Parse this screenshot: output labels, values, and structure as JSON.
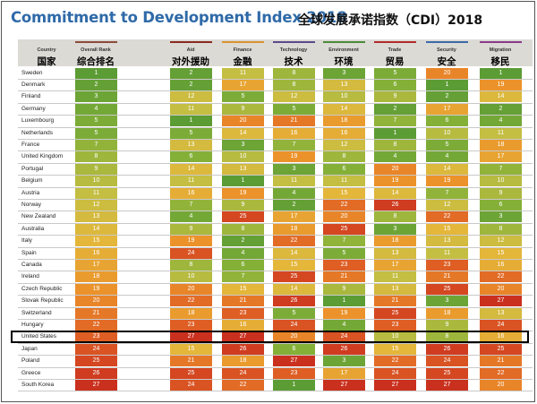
{
  "title": "Commitment to Development Index 2018",
  "title_cn": "全球发展承诺指数（CDI）2018",
  "columns": [
    {
      "en": "Country",
      "cn": "国家",
      "accent": ""
    },
    {
      "en": "Overall Rank",
      "cn": "综合排名",
      "accent": "#8b4a3a"
    },
    {
      "en": "Aid",
      "cn": "对外援助",
      "accent": "#8a2a1f"
    },
    {
      "en": "Finance",
      "cn": "金融",
      "accent": "#d9932f"
    },
    {
      "en": "Technology",
      "cn": "技术",
      "accent": "#5b4a8a"
    },
    {
      "en": "Environment",
      "cn": "环境",
      "accent": "#4a8a3a"
    },
    {
      "en": "Trade",
      "cn": "贸易",
      "accent": "#b22a2a"
    },
    {
      "en": "Security",
      "cn": "安全",
      "accent": "#3a6aa8"
    },
    {
      "en": "Migration",
      "cn": "移民",
      "accent": "#8a3a8a"
    }
  ],
  "highlight": "United States",
  "chart_data": {
    "type": "table",
    "title": "Commitment to Development Index 2018",
    "columns": [
      "Country",
      "Overall Rank",
      "Aid",
      "Finance",
      "Technology",
      "Environment",
      "Trade",
      "Security",
      "Migration"
    ],
    "rows": [
      [
        "Sweden",
        1,
        2,
        11,
        8,
        3,
        5,
        20,
        1
      ],
      [
        "Denmark",
        2,
        2,
        17,
        8,
        13,
        6,
        1,
        19
      ],
      [
        "Finland",
        3,
        12,
        5,
        12,
        10,
        9,
        2,
        14
      ],
      [
        "Germany",
        4,
        11,
        9,
        5,
        14,
        2,
        17,
        2
      ],
      [
        "Luxembourg",
        5,
        1,
        20,
        21,
        18,
        7,
        6,
        4
      ],
      [
        "Netherlands",
        5,
        5,
        14,
        16,
        16,
        1,
        10,
        11
      ],
      [
        "France",
        7,
        13,
        3,
        7,
        12,
        8,
        5,
        18
      ],
      [
        "United Kingdom",
        8,
        6,
        10,
        19,
        8,
        4,
        4,
        17
      ],
      [
        "Portugal",
        9,
        14,
        13,
        3,
        6,
        20,
        14,
        7
      ],
      [
        "Belgium",
        10,
        11,
        1,
        11,
        11,
        19,
        19,
        10
      ],
      [
        "Austria",
        11,
        16,
        19,
        4,
        15,
        14,
        7,
        9
      ],
      [
        "Norway",
        12,
        7,
        9,
        2,
        22,
        26,
        12,
        6
      ],
      [
        "New Zealand",
        13,
        4,
        25,
        17,
        20,
        8,
        22,
        3
      ],
      [
        "Australia",
        14,
        9,
        8,
        18,
        25,
        3,
        15,
        8
      ],
      [
        "Italy",
        15,
        19,
        2,
        22,
        7,
        18,
        13,
        12
      ],
      [
        "Spain",
        16,
        24,
        4,
        14,
        5,
        13,
        11,
        15
      ],
      [
        "Canada",
        17,
        8,
        6,
        15,
        23,
        17,
        23,
        16
      ],
      [
        "Ireland",
        18,
        10,
        7,
        25,
        21,
        11,
        21,
        22
      ],
      [
        "Czech Republic",
        19,
        20,
        15,
        14,
        9,
        13,
        25,
        20
      ],
      [
        "Slovak Republic",
        20,
        22,
        21,
        26,
        1,
        21,
        3,
        27
      ],
      [
        "Switzerland",
        21,
        18,
        23,
        5,
        19,
        25,
        18,
        13
      ],
      [
        "Hungary",
        22,
        23,
        16,
        24,
        4,
        23,
        9,
        24
      ],
      [
        "United States",
        23,
        27,
        27,
        20,
        24,
        10,
        8,
        16
      ],
      [
        "Japan",
        24,
        15,
        26,
        6,
        26,
        15,
        26,
        25
      ],
      [
        "Poland",
        25,
        21,
        18,
        27,
        3,
        22,
        24,
        21
      ],
      [
        "Greece",
        26,
        25,
        24,
        23,
        17,
        24,
        25,
        22
      ],
      [
        "South Korea",
        27,
        24,
        22,
        1,
        27,
        27,
        27,
        20
      ]
    ]
  }
}
